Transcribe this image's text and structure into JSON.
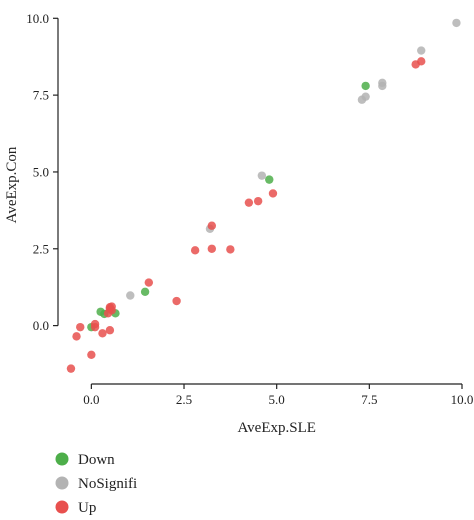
{
  "chart_data": {
    "type": "scatter",
    "xlabel": "AveExp.SLE",
    "ylabel": "AveExp.Con",
    "xlim": [
      -0.9,
      10.0
    ],
    "ylim": [
      -1.9,
      10.4
    ],
    "xticks": [
      "0.0",
      "2.5",
      "5.0",
      "7.5",
      "10.0"
    ],
    "yticks": [
      "0.0",
      "2.5",
      "5.0",
      "7.5",
      "10.0"
    ],
    "grid": false,
    "legend_position": "bottom-left",
    "series": [
      {
        "name": "Down",
        "color": "#4dae4a",
        "points": [
          [
            0.0,
            -0.05
          ],
          [
            0.25,
            0.45
          ],
          [
            0.35,
            0.38
          ],
          [
            0.65,
            0.4
          ],
          [
            1.45,
            1.1
          ],
          [
            4.8,
            4.75
          ],
          [
            7.4,
            7.8
          ]
        ]
      },
      {
        "name": "NoSignifi",
        "color": "#b3b3b3",
        "points": [
          [
            1.05,
            0.98
          ],
          [
            3.2,
            3.15
          ],
          [
            4.6,
            4.88
          ],
          [
            7.3,
            7.35
          ],
          [
            7.4,
            7.45
          ],
          [
            7.85,
            7.8
          ],
          [
            7.85,
            7.9
          ],
          [
            8.9,
            8.95
          ],
          [
            9.85,
            9.85
          ]
        ]
      },
      {
        "name": "Up",
        "color": "#e8504e",
        "points": [
          [
            -0.55,
            -1.4
          ],
          [
            -0.4,
            -0.35
          ],
          [
            -0.3,
            -0.05
          ],
          [
            0.0,
            -0.95
          ],
          [
            0.1,
            0.05
          ],
          [
            0.1,
            -0.05
          ],
          [
            0.3,
            -0.25
          ],
          [
            0.45,
            0.4
          ],
          [
            0.5,
            -0.15
          ],
          [
            0.5,
            0.55
          ],
          [
            0.5,
            0.6
          ],
          [
            0.55,
            0.5
          ],
          [
            0.55,
            0.62
          ],
          [
            1.55,
            1.4
          ],
          [
            2.3,
            0.8
          ],
          [
            2.8,
            2.45
          ],
          [
            3.25,
            2.5
          ],
          [
            3.25,
            3.25
          ],
          [
            3.75,
            2.48
          ],
          [
            4.25,
            4.0
          ],
          [
            4.5,
            4.05
          ],
          [
            4.9,
            4.3
          ],
          [
            8.75,
            8.5
          ],
          [
            8.9,
            8.6
          ]
        ]
      }
    ]
  }
}
